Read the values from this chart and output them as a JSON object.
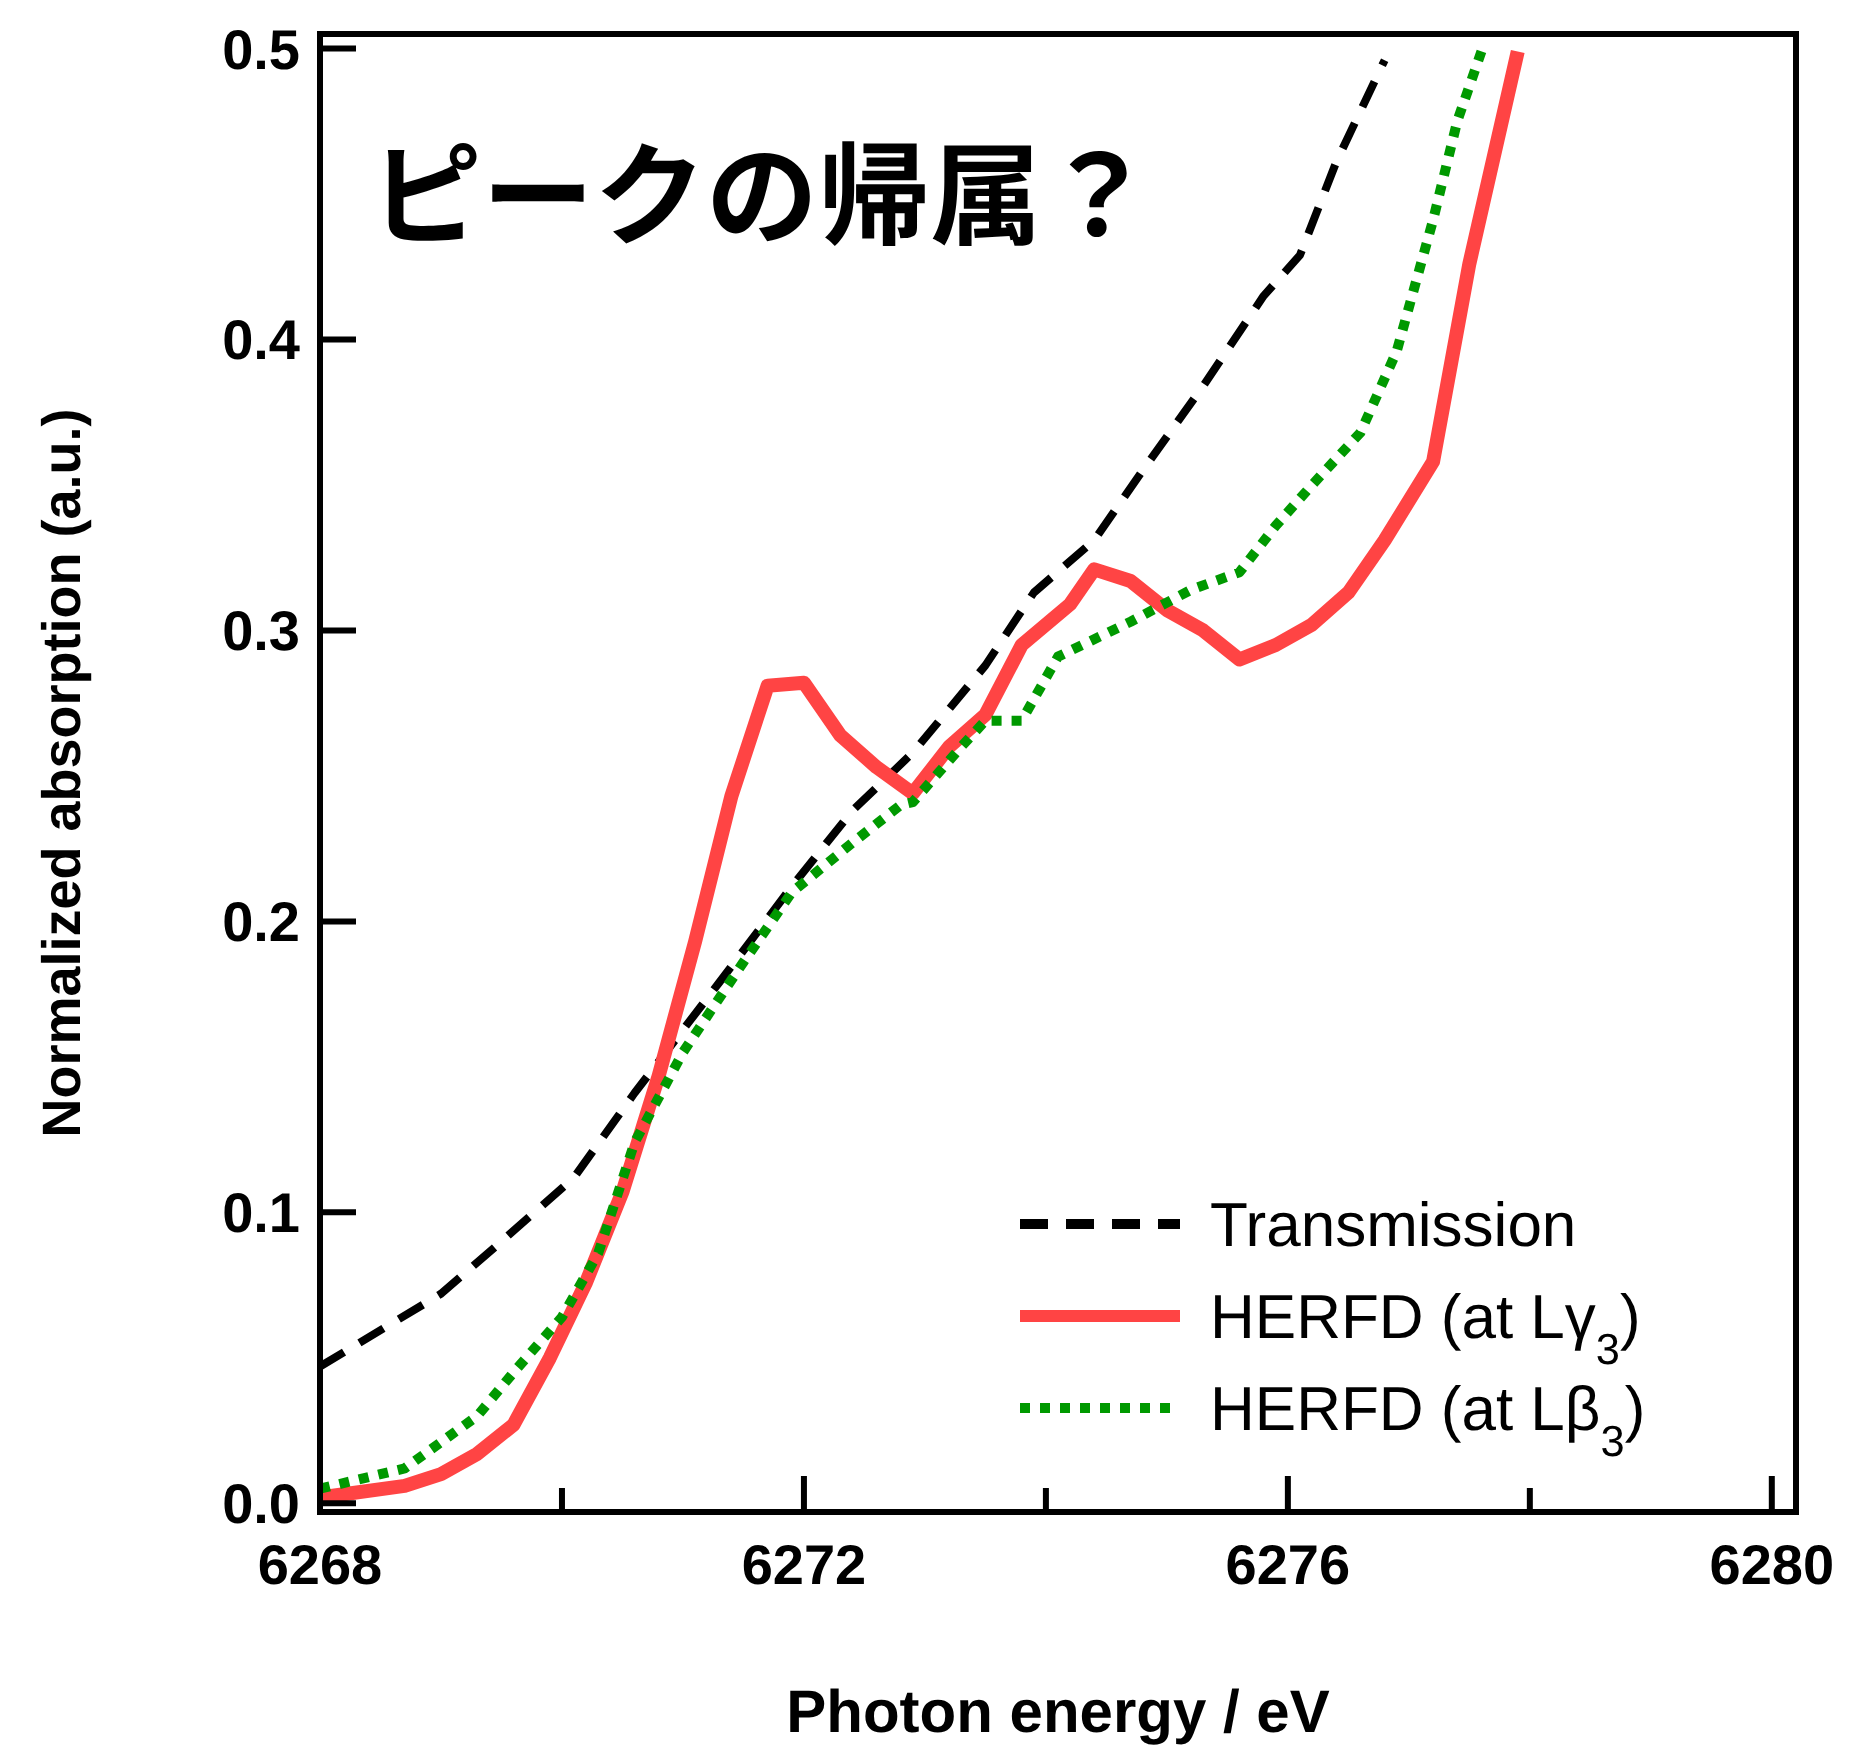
{
  "chart_data": {
    "type": "line",
    "title": "ピークの帰属？",
    "xlabel": "Photon energy / eV",
    "ylabel": "Normalized absorption (a.u.)",
    "xlim": [
      6268,
      6280.2
    ],
    "ylim": [
      -0.003,
      0.505
    ],
    "xticks": [
      6268,
      {
        "value": 6270,
        "label": null
      },
      6272,
      {
        "value": 6274,
        "label": null
      },
      6276,
      {
        "value": 6278,
        "label": null
      },
      6280
    ],
    "yticks": [
      {
        "value": 0,
        "label": "0.0"
      },
      0.1,
      0.2,
      0.3,
      0.4,
      0.5
    ],
    "legend": "bottom right",
    "grid": false,
    "series": [
      {
        "name": "Transmission",
        "color": "#000000",
        "line_style": "dashed",
        "x": [
          6268,
          6269.0,
          6269.5,
          6270.1,
          6270.6,
          6271.3,
          6271.9,
          6272.4,
          6272.9,
          6273.5,
          6273.9,
          6274.4,
          6274.8,
          6275.3,
          6275.8,
          6276.1,
          6276.4,
          6276.8
        ],
        "values": [
          0.047,
          0.072,
          0.09,
          0.112,
          0.141,
          0.179,
          0.212,
          0.238,
          0.258,
          0.288,
          0.313,
          0.331,
          0.355,
          0.384,
          0.415,
          0.429,
          0.461,
          0.496
        ]
      },
      {
        "name": "HERFD (at Lγ$_{3}$)",
        "color": "#ff4444",
        "line_style": "solid",
        "x": [
          6268,
          6268.7,
          6269.0,
          6269.3,
          6269.6,
          6269.9,
          6270.2,
          6270.5,
          6270.8,
          6271.1,
          6271.4,
          6271.7,
          6272.0,
          6272.3,
          6272.6,
          6272.9,
          6273.2,
          6273.5,
          6273.8,
          6274.2,
          6274.4,
          6274.7,
          6275.0,
          6275.3,
          6275.6,
          6275.9,
          6276.2,
          6276.5,
          6276.8,
          6277.2,
          6277.5,
          6277.9
        ],
        "values": [
          0.002,
          0.006,
          0.01,
          0.017,
          0.027,
          0.05,
          0.076,
          0.107,
          0.147,
          0.193,
          0.243,
          0.281,
          0.282,
          0.264,
          0.253,
          0.244,
          0.26,
          0.271,
          0.295,
          0.309,
          0.321,
          0.317,
          0.307,
          0.3,
          0.29,
          0.295,
          0.302,
          0.313,
          0.331,
          0.358,
          0.426,
          0.499
        ]
      },
      {
        "name": "HERFD (at Lβ$_{3}$)",
        "color": "#009900",
        "line_style": "dotted",
        "x": [
          6268,
          6268.7,
          6269.3,
          6269.6,
          6270.0,
          6270.3,
          6270.6,
          6271.0,
          6271.5,
          6271.9,
          6272.4,
          6272.8,
          6272.9,
          6273.3,
          6273.5,
          6273.8,
          6274.1,
          6274.7,
          6275.2,
          6275.6,
          6275.9,
          6276.2,
          6276.6,
          6276.9,
          6277.2,
          6277.4,
          6277.6
        ],
        "values": [
          0.005,
          0.012,
          0.03,
          0.045,
          0.064,
          0.086,
          0.124,
          0.155,
          0.186,
          0.21,
          0.227,
          0.24,
          0.241,
          0.26,
          0.269,
          0.269,
          0.291,
          0.303,
          0.314,
          0.32,
          0.336,
          0.35,
          0.368,
          0.396,
          0.441,
          0.475,
          0.499
        ]
      }
    ]
  }
}
